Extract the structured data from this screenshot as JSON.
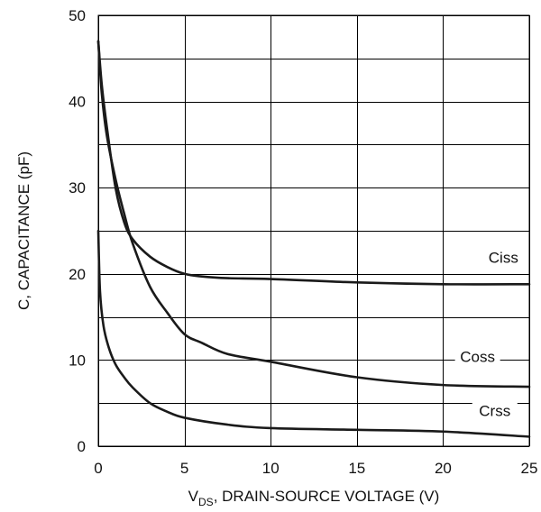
{
  "chart_data": {
    "type": "line",
    "xlabel_main": "V",
    "xlabel_sub": "DS",
    "xlabel_rest": ", DRAIN-SOURCE VOLTAGE (V)",
    "ylabel": "C, CAPACITANCE (pF)",
    "xlim": [
      0,
      25
    ],
    "ylim": [
      0,
      50
    ],
    "x_ticks": [
      0,
      5,
      10,
      15,
      20,
      25
    ],
    "y_ticks": [
      0,
      10,
      20,
      30,
      40,
      50
    ],
    "x_tick_labels": [
      "0",
      "5",
      "10",
      "15",
      "20",
      "25"
    ],
    "y_tick_labels": [
      "0",
      "10",
      "20",
      "30",
      "40",
      "50"
    ],
    "grid": true,
    "series": [
      {
        "name": "Ciss",
        "x": [
          0,
          0.2,
          0.5,
          1.0,
          1.5,
          2.0,
          3.0,
          4.0,
          5.0,
          6.0,
          7.5,
          10,
          15,
          20,
          25
        ],
        "y": [
          47,
          42,
          37,
          30,
          26,
          24,
          22,
          20.8,
          20,
          19.7,
          19.5,
          19.4,
          19,
          18.8,
          18.8
        ]
      },
      {
        "name": "Coss",
        "x": [
          0,
          0.2,
          0.5,
          1.0,
          1.5,
          2.0,
          3.0,
          4.0,
          5.0,
          6.0,
          7.5,
          10,
          15,
          20,
          25
        ],
        "y": [
          47,
          41,
          36,
          31,
          27,
          23.5,
          18.5,
          15.5,
          13,
          12,
          10.7,
          9.8,
          8,
          7.1,
          6.9
        ]
      },
      {
        "name": "Crss",
        "x": [
          0,
          0.1,
          0.3,
          0.6,
          1.0,
          1.5,
          2.0,
          3.0,
          4.0,
          5.0,
          7.5,
          10,
          15,
          20,
          25
        ],
        "y": [
          25,
          18,
          14,
          11.5,
          9.5,
          8,
          6.8,
          5,
          4,
          3.3,
          2.5,
          2.1,
          1.9,
          1.7,
          1.1
        ]
      }
    ],
    "curve_labels": [
      {
        "text": "Ciss",
        "x": 23.5,
        "y": 21.5
      },
      {
        "text": "Coss",
        "x": 22.0,
        "y": 10.0
      },
      {
        "text": "Crss",
        "x": 23.0,
        "y": 3.7
      }
    ]
  }
}
